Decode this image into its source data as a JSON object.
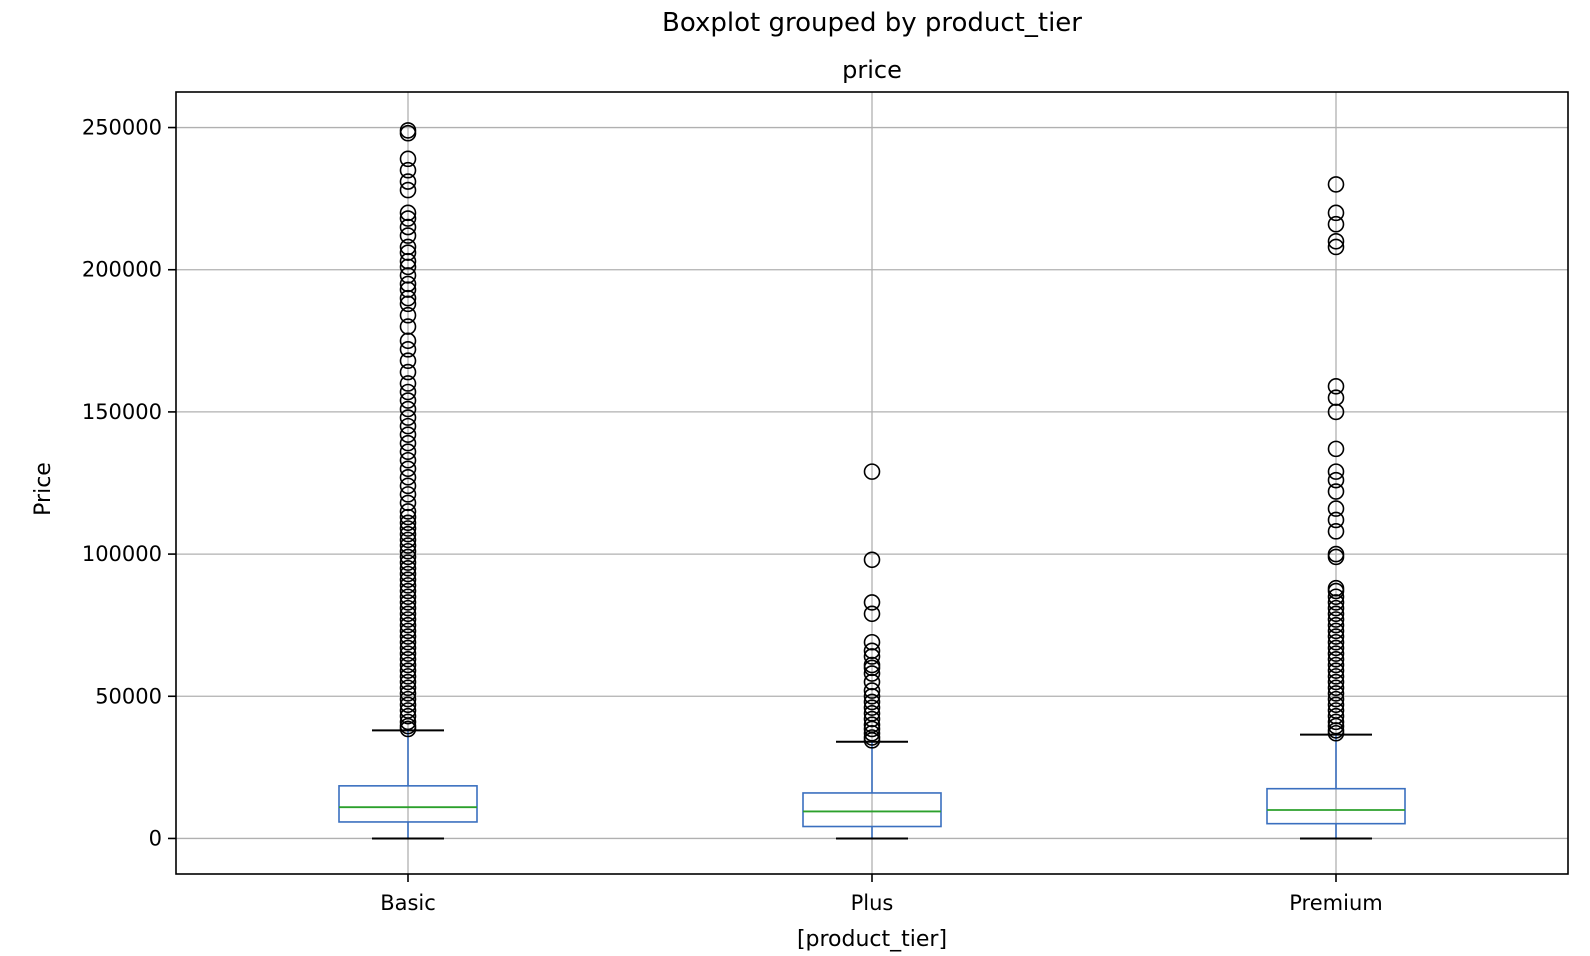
{
  "chart_data": {
    "type": "box",
    "suptitle": "Boxplot grouped by product_tier",
    "title": "price",
    "xlabel": "[product_tier]",
    "ylabel": "Price",
    "categories": [
      "Basic",
      "Plus",
      "Premium"
    ],
    "ylim": [
      -12500,
      262500
    ],
    "yticks": [
      0,
      50000,
      100000,
      150000,
      200000,
      250000
    ],
    "ytick_labels": [
      "0",
      "50000",
      "100000",
      "150000",
      "200000",
      "250000"
    ],
    "grid": true,
    "colors": {
      "box": "#3a6fbf",
      "median": "#2ca02c",
      "cap": "#000000",
      "flier": "#000000",
      "grid": "#b0b0b0"
    },
    "boxes": [
      {
        "name": "Basic",
        "whislo": 0,
        "q1": 5800,
        "med": 11000,
        "q3": 18500,
        "whishi": 38000,
        "fliers": [
          38500,
          39500,
          41000,
          43000,
          45000,
          47000,
          49000,
          51000,
          53000,
          55000,
          57000,
          59000,
          61000,
          63000,
          65000,
          67000,
          69000,
          71000,
          73000,
          75000,
          77000,
          79000,
          81000,
          83000,
          85000,
          87000,
          89000,
          91000,
          93000,
          95000,
          97000,
          99000,
          101000,
          103000,
          105000,
          107000,
          109000,
          111000,
          113000,
          115000,
          118000,
          121000,
          124000,
          127000,
          130000,
          133000,
          136000,
          139000,
          142000,
          145000,
          148000,
          151000,
          154000,
          157000,
          160000,
          164000,
          168000,
          172000,
          175000,
          180000,
          184000,
          188000,
          190000,
          193000,
          195000,
          198000,
          201000,
          203000,
          206000,
          208000,
          212000,
          215000,
          218000,
          220000,
          228000,
          231000,
          235000,
          239000,
          248000,
          249000
        ]
      },
      {
        "name": "Plus",
        "whislo": 0,
        "q1": 4200,
        "med": 9500,
        "q3": 16000,
        "whishi": 34000,
        "fliers": [
          34500,
          35500,
          37000,
          38500,
          40000,
          42000,
          44000,
          46000,
          48000,
          50000,
          52000,
          55000,
          58000,
          60000,
          61000,
          64000,
          66000,
          69000,
          79000,
          83000,
          98000,
          129000
        ]
      },
      {
        "name": "Premium",
        "whislo": 0,
        "q1": 5200,
        "med": 10000,
        "q3": 17500,
        "whishi": 36500,
        "fliers": [
          37000,
          38000,
          39500,
          41000,
          43000,
          45000,
          47000,
          49000,
          51000,
          53000,
          55000,
          57000,
          59000,
          61000,
          63000,
          65000,
          67000,
          69000,
          71000,
          73000,
          75000,
          77000,
          79000,
          81000,
          83000,
          85000,
          87000,
          88000,
          99000,
          100000,
          108000,
          112000,
          116000,
          122000,
          126000,
          129000,
          137000,
          150000,
          155000,
          159000,
          208000,
          210000,
          216000,
          220000,
          230000
        ]
      }
    ]
  }
}
